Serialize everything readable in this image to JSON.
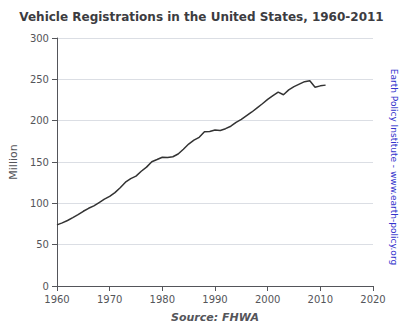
{
  "chart_data": {
    "type": "line",
    "title": "Vehicle Registrations in the United States, 1960-2011",
    "xlabel": "Source: FHWA",
    "ylabel": "Million",
    "annotations": [
      {
        "text": "Earth Policy Institute - www.earth-policy.org",
        "color": "#3333cc"
      }
    ],
    "color": "#333333",
    "x": [
      1960,
      1961,
      1962,
      1963,
      1964,
      1965,
      1966,
      1967,
      1968,
      1969,
      1970,
      1971,
      1972,
      1973,
      1974,
      1975,
      1976,
      1977,
      1978,
      1979,
      1980,
      1981,
      1982,
      1983,
      1984,
      1985,
      1986,
      1987,
      1988,
      1989,
      1990,
      1991,
      1992,
      1993,
      1994,
      1995,
      1996,
      1997,
      1998,
      1999,
      2000,
      2001,
      2002,
      2003,
      2004,
      2005,
      2006,
      2007,
      2008,
      2009,
      2010,
      2011
    ],
    "values": [
      73.9,
      76.4,
      79.2,
      82.7,
      86.3,
      90.4,
      94.0,
      96.9,
      101.0,
      105.1,
      108.4,
      113.0,
      118.8,
      125.6,
      129.9,
      132.9,
      138.8,
      143.8,
      150.3,
      153.0,
      155.8,
      155.4,
      156.4,
      159.7,
      165.5,
      171.7,
      176.4,
      179.9,
      186.7,
      187.0,
      188.8,
      188.2,
      190.3,
      193.3,
      198.0,
      201.5,
      206.0,
      210.5,
      215.5,
      220.5,
      225.8,
      230.4,
      234.6,
      231.4,
      237.2,
      241.2,
      244.2,
      247.2,
      248.2,
      240.5,
      242.1,
      243.0
    ],
    "xlim": [
      1960,
      2020
    ],
    "xticks": [
      1960,
      1970,
      1980,
      1990,
      2000,
      2010,
      2020
    ],
    "ylim": [
      0,
      300
    ],
    "yticks": [
      0,
      50,
      100,
      150,
      200,
      250,
      300
    ],
    "grid": true
  }
}
